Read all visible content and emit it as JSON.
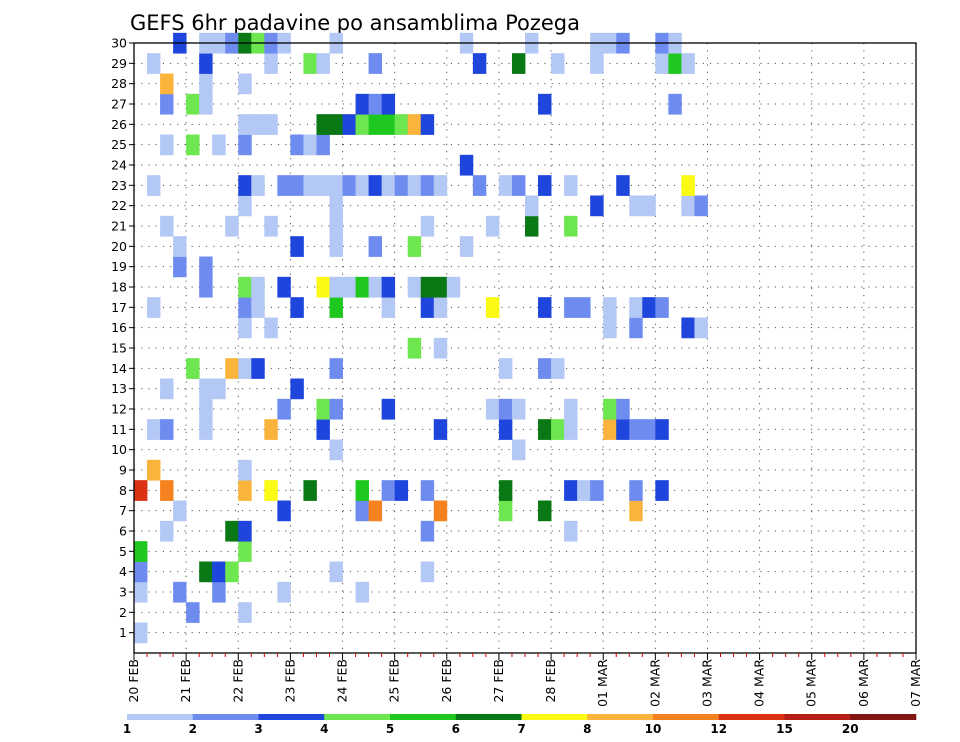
{
  "chart_data": {
    "type": "heatmap",
    "title": "GEFS 6hr padavine po ansamblima Pozega",
    "x_tick_labels": [
      "20 FEB",
      "21 FEB",
      "22 FEB",
      "23 FEB",
      "24 FEB",
      "25 FEB",
      "26 FEB",
      "27 FEB",
      "28 FEB",
      "01 MAR",
      "02 MAR",
      "03 MAR",
      "04 MAR",
      "05 MAR",
      "06 MAR",
      "07 MAR"
    ],
    "y_tick_labels": [
      "1",
      "2",
      "3",
      "4",
      "5",
      "6",
      "7",
      "8",
      "9",
      "10",
      "11",
      "12",
      "13",
      "14",
      "15",
      "16",
      "17",
      "18",
      "19",
      "20",
      "21",
      "22",
      "23",
      "24",
      "25",
      "26",
      "27",
      "28",
      "29",
      "30"
    ],
    "ylim": [
      0,
      30
    ],
    "time_step_hours": 6,
    "grid": true,
    "color_levels": {
      "labels": [
        "1",
        "2",
        "3",
        "4",
        "5",
        "6",
        "7",
        "8",
        "10",
        "12",
        "15",
        "20"
      ],
      "colors": [
        "#b4c8f5",
        "#6e8cf0",
        "#1e46dc",
        "#6ee650",
        "#1ec81e",
        "#0a7814",
        "#fafa14",
        "#fab43c",
        "#f5821e",
        "#dc3214",
        "#b41e14",
        "#821414"
      ]
    },
    "cells": [
      {
        "m": 1,
        "s": [
          [
            0,
            1
          ]
        ]
      },
      {
        "m": 2,
        "s": [
          [
            4,
            2
          ],
          [
            8,
            1
          ]
        ]
      },
      {
        "m": 3,
        "s": [
          [
            0,
            1
          ],
          [
            3,
            2
          ],
          [
            6,
            2
          ],
          [
            11,
            1
          ],
          [
            17,
            1
          ]
        ]
      },
      {
        "m": 4,
        "s": [
          [
            0,
            2
          ],
          [
            5,
            6
          ],
          [
            6,
            3
          ],
          [
            7,
            4
          ],
          [
            15,
            1
          ],
          [
            22,
            1
          ]
        ]
      },
      {
        "m": 5,
        "s": [
          [
            0,
            5
          ],
          [
            8,
            4
          ]
        ]
      },
      {
        "m": 6,
        "s": [
          [
            2,
            1
          ],
          [
            7,
            6
          ],
          [
            8,
            3
          ],
          [
            22,
            2
          ],
          [
            33,
            1
          ]
        ]
      },
      {
        "m": 7,
        "s": [
          [
            3,
            1
          ],
          [
            11,
            3
          ],
          [
            17,
            2
          ],
          [
            18,
            9
          ],
          [
            23,
            9
          ],
          [
            28,
            4
          ],
          [
            31,
            6
          ],
          [
            38,
            8
          ]
        ]
      },
      {
        "m": 8,
        "s": [
          [
            0,
            10
          ],
          [
            2,
            9
          ],
          [
            8,
            8
          ],
          [
            10,
            7
          ],
          [
            13,
            6
          ],
          [
            17,
            5
          ],
          [
            19,
            2
          ],
          [
            20,
            3
          ],
          [
            22,
            2
          ],
          [
            28,
            6
          ],
          [
            33,
            3
          ],
          [
            34,
            1
          ],
          [
            35,
            2
          ],
          [
            38,
            2
          ],
          [
            40,
            3
          ]
        ]
      },
      {
        "m": 9,
        "s": [
          [
            1,
            8
          ],
          [
            8,
            1
          ]
        ]
      },
      {
        "m": 10,
        "s": [
          [
            15,
            1
          ],
          [
            29,
            1
          ]
        ]
      },
      {
        "m": 11,
        "s": [
          [
            1,
            1
          ],
          [
            2,
            2
          ],
          [
            5,
            1
          ],
          [
            10,
            8
          ],
          [
            14,
            3
          ],
          [
            23,
            3
          ],
          [
            28,
            3
          ],
          [
            31,
            6
          ],
          [
            32,
            4
          ],
          [
            33,
            1
          ],
          [
            36,
            8
          ],
          [
            37,
            3
          ],
          [
            38,
            2
          ],
          [
            39,
            2
          ],
          [
            40,
            3
          ]
        ]
      },
      {
        "m": 12,
        "s": [
          [
            5,
            1
          ],
          [
            11,
            2
          ],
          [
            14,
            4
          ],
          [
            15,
            2
          ],
          [
            19,
            3
          ],
          [
            27,
            1
          ],
          [
            28,
            2
          ],
          [
            29,
            1
          ],
          [
            33,
            1
          ],
          [
            36,
            4
          ],
          [
            37,
            2
          ]
        ]
      },
      {
        "m": 13,
        "s": [
          [
            2,
            1
          ],
          [
            5,
            1
          ],
          [
            6,
            1
          ],
          [
            12,
            3
          ]
        ]
      },
      {
        "m": 14,
        "s": [
          [
            4,
            4
          ],
          [
            7,
            8
          ],
          [
            8,
            1
          ],
          [
            9,
            3
          ],
          [
            15,
            2
          ],
          [
            28,
            1
          ],
          [
            31,
            2
          ],
          [
            32,
            1
          ]
        ]
      },
      {
        "m": 15,
        "s": [
          [
            21,
            4
          ],
          [
            23,
            1
          ]
        ]
      },
      {
        "m": 16,
        "s": [
          [
            8,
            1
          ],
          [
            10,
            1
          ],
          [
            36,
            1
          ],
          [
            38,
            2
          ],
          [
            42,
            3
          ],
          [
            43,
            1
          ]
        ]
      },
      {
        "m": 17,
        "s": [
          [
            1,
            1
          ],
          [
            8,
            2
          ],
          [
            9,
            1
          ],
          [
            12,
            3
          ],
          [
            15,
            5
          ],
          [
            19,
            1
          ],
          [
            22,
            3
          ],
          [
            23,
            1
          ],
          [
            27,
            7
          ],
          [
            31,
            3
          ],
          [
            33,
            2
          ],
          [
            34,
            2
          ],
          [
            36,
            1
          ],
          [
            38,
            1
          ],
          [
            39,
            3
          ],
          [
            40,
            2
          ]
        ]
      },
      {
        "m": 18,
        "s": [
          [
            5,
            2
          ],
          [
            8,
            4
          ],
          [
            9,
            1
          ],
          [
            11,
            3
          ],
          [
            14,
            7
          ],
          [
            15,
            1
          ],
          [
            16,
            1
          ],
          [
            17,
            5
          ],
          [
            18,
            1
          ],
          [
            19,
            3
          ],
          [
            21,
            1
          ],
          [
            22,
            6
          ],
          [
            23,
            6
          ],
          [
            24,
            1
          ]
        ]
      },
      {
        "m": 19,
        "s": [
          [
            3,
            2
          ],
          [
            5,
            2
          ]
        ]
      },
      {
        "m": 20,
        "s": [
          [
            3,
            1
          ],
          [
            12,
            3
          ],
          [
            15,
            1
          ],
          [
            18,
            2
          ],
          [
            21,
            4
          ],
          [
            25,
            1
          ]
        ]
      },
      {
        "m": 21,
        "s": [
          [
            2,
            1
          ],
          [
            7,
            1
          ],
          [
            10,
            1
          ],
          [
            15,
            1
          ],
          [
            22,
            1
          ],
          [
            27,
            1
          ],
          [
            30,
            6
          ],
          [
            33,
            4
          ]
        ]
      },
      {
        "m": 22,
        "s": [
          [
            8,
            1
          ],
          [
            15,
            1
          ],
          [
            30,
            1
          ],
          [
            35,
            3
          ],
          [
            38,
            1
          ],
          [
            39,
            1
          ],
          [
            42,
            1
          ],
          [
            43,
            2
          ]
        ]
      },
      {
        "m": 23,
        "s": [
          [
            1,
            1
          ],
          [
            8,
            3
          ],
          [
            9,
            1
          ],
          [
            11,
            2
          ],
          [
            12,
            2
          ],
          [
            13,
            1
          ],
          [
            14,
            1
          ],
          [
            15,
            1
          ],
          [
            16,
            2
          ],
          [
            17,
            1
          ],
          [
            18,
            3
          ],
          [
            19,
            1
          ],
          [
            20,
            2
          ],
          [
            21,
            1
          ],
          [
            22,
            2
          ],
          [
            23,
            1
          ],
          [
            26,
            2
          ],
          [
            28,
            1
          ],
          [
            29,
            2
          ],
          [
            31,
            3
          ],
          [
            33,
            1
          ],
          [
            37,
            3
          ],
          [
            42,
            7
          ]
        ]
      },
      {
        "m": 24,
        "s": [
          [
            25,
            3
          ]
        ]
      },
      {
        "m": 25,
        "s": [
          [
            2,
            1
          ],
          [
            4,
            4
          ],
          [
            6,
            1
          ],
          [
            8,
            2
          ],
          [
            12,
            2
          ],
          [
            13,
            1
          ],
          [
            14,
            2
          ]
        ]
      },
      {
        "m": 26,
        "s": [
          [
            8,
            1
          ],
          [
            9,
            1
          ],
          [
            10,
            1
          ],
          [
            14,
            6
          ],
          [
            15,
            6
          ],
          [
            16,
            3
          ],
          [
            17,
            4
          ],
          [
            18,
            5
          ],
          [
            19,
            5
          ],
          [
            20,
            4
          ],
          [
            21,
            8
          ],
          [
            22,
            3
          ]
        ]
      },
      {
        "m": 27,
        "s": [
          [
            2,
            2
          ],
          [
            4,
            4
          ],
          [
            5,
            1
          ],
          [
            17,
            3
          ],
          [
            18,
            2
          ],
          [
            19,
            3
          ],
          [
            31,
            3
          ],
          [
            41,
            2
          ]
        ]
      },
      {
        "m": 28,
        "s": [
          [
            2,
            8
          ],
          [
            5,
            1
          ],
          [
            8,
            1
          ]
        ]
      },
      {
        "m": 29,
        "s": [
          [
            1,
            1
          ],
          [
            5,
            3
          ],
          [
            10,
            1
          ],
          [
            13,
            4
          ],
          [
            14,
            1
          ],
          [
            18,
            2
          ],
          [
            26,
            3
          ],
          [
            29,
            6
          ],
          [
            32,
            1
          ],
          [
            35,
            1
          ],
          [
            40,
            1
          ],
          [
            41,
            5
          ],
          [
            42,
            1
          ]
        ]
      },
      {
        "m": 30,
        "s": [
          [
            3,
            3
          ],
          [
            5,
            1
          ],
          [
            6,
            1
          ],
          [
            7,
            2
          ],
          [
            8,
            6
          ],
          [
            9,
            4
          ],
          [
            10,
            2
          ],
          [
            11,
            1
          ],
          [
            15,
            1
          ],
          [
            25,
            1
          ],
          [
            30,
            1
          ],
          [
            35,
            1
          ],
          [
            36,
            1
          ],
          [
            37,
            2
          ],
          [
            40,
            2
          ],
          [
            41,
            1
          ]
        ]
      }
    ]
  }
}
